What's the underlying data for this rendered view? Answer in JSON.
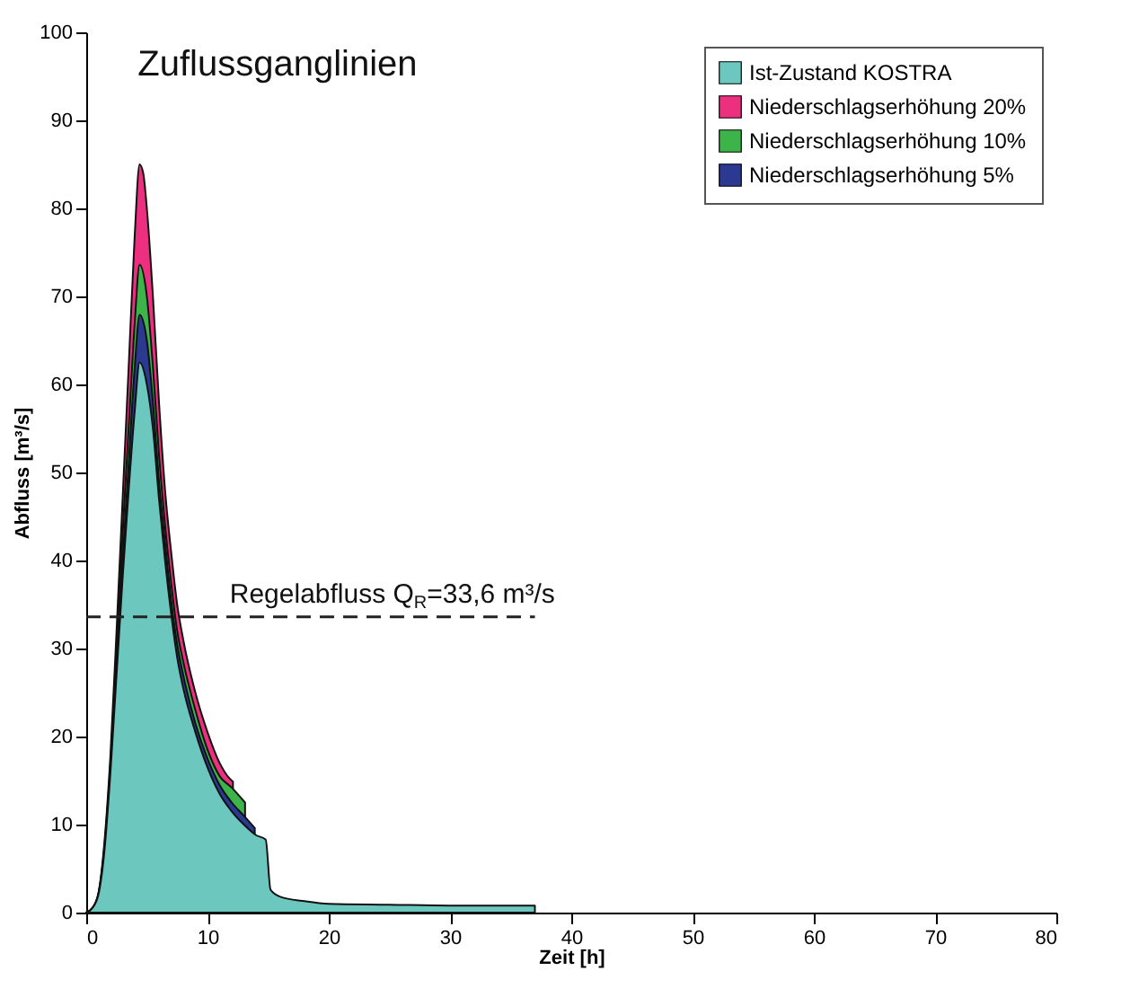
{
  "chart_data": {
    "type": "area",
    "title": "Zuflussganglinien",
    "xlabel": "Zeit [h]",
    "ylabel": "Abfluss [m³/s]",
    "xlim": [
      0,
      80
    ],
    "xticks": [
      0,
      10,
      20,
      30,
      40,
      50,
      60,
      70,
      80
    ],
    "ylim": [
      0,
      100
    ],
    "yticks": [
      0,
      10,
      20,
      30,
      40,
      50,
      60,
      70,
      80,
      90,
      100
    ],
    "grid": false,
    "legend": "top right",
    "series": [
      {
        "name": "Ist-Zustand KOSTRA",
        "color": "#6cc8bf",
        "x": [
          0,
          0.5,
          1,
          1.5,
          2,
          2.5,
          3,
          3.5,
          4,
          4.4,
          5,
          5.5,
          6,
          6.5,
          7,
          7.5,
          8,
          9,
          10,
          11,
          12,
          13,
          14,
          14.8,
          15.2,
          16,
          18,
          20,
          25,
          30,
          37
        ],
        "values": [
          0,
          0.5,
          2,
          7,
          16,
          27,
          38,
          48,
          57,
          62.5,
          60,
          55,
          47,
          40,
          34,
          29,
          25.5,
          20.5,
          16.5,
          13.5,
          11.5,
          10,
          8.8,
          8.3,
          2.6,
          1.8,
          1.3,
          1,
          0.9,
          0.8,
          0.8
        ]
      },
      {
        "name": "Niederschlagserhöhung 20%",
        "color": "#ec2f7f",
        "x": [
          0,
          0.5,
          1,
          1.5,
          2,
          2.5,
          3,
          3.5,
          4,
          4.4,
          4.7,
          5,
          5.5,
          6,
          6.5,
          7,
          7.5,
          8,
          9,
          10,
          11,
          12,
          12.1
        ],
        "values": [
          0,
          0.5,
          2.2,
          8,
          18,
          32,
          47,
          62,
          77,
          85,
          84,
          80,
          70,
          58,
          48,
          41,
          35,
          31,
          25,
          20.5,
          17,
          15,
          14.9
        ]
      },
      {
        "name": "Niederschlagserhöhung 10%",
        "color": "#3cb44a",
        "x": [
          0,
          0.5,
          1,
          1.5,
          2,
          2.5,
          3,
          3.5,
          4,
          4.4,
          5,
          5.5,
          6,
          6.5,
          7,
          7.5,
          8,
          9,
          10,
          11,
          12,
          13.1
        ],
        "values": [
          0,
          0.5,
          2.1,
          7.5,
          17,
          29,
          43,
          55,
          67,
          73.6,
          70,
          62,
          52,
          44,
          37.5,
          32,
          28.5,
          23,
          18.5,
          15.5,
          14.2,
          12.5
        ]
      },
      {
        "name": "Niederschlagserhöhung 5%",
        "color": "#2b3990",
        "x": [
          0,
          0.5,
          1,
          1.5,
          2,
          2.5,
          3,
          3.5,
          4,
          4.4,
          5,
          5.5,
          6,
          6.5,
          7,
          7.5,
          8,
          9,
          10,
          11,
          12,
          13,
          13.9
        ],
        "values": [
          0,
          0.5,
          2,
          7.2,
          16.5,
          28,
          40,
          51,
          62,
          67.9,
          65,
          58,
          49,
          42,
          35.5,
          30.5,
          27,
          21.5,
          17.5,
          14.5,
          12.5,
          11,
          9.6
        ]
      }
    ],
    "ref_lines": [
      {
        "axis": "y",
        "value": 33.6,
        "label": "Regelabfluss Q$_{R}$=33,6 m³/s",
        "line_style": "dashed",
        "color": "#222222"
      }
    ]
  }
}
